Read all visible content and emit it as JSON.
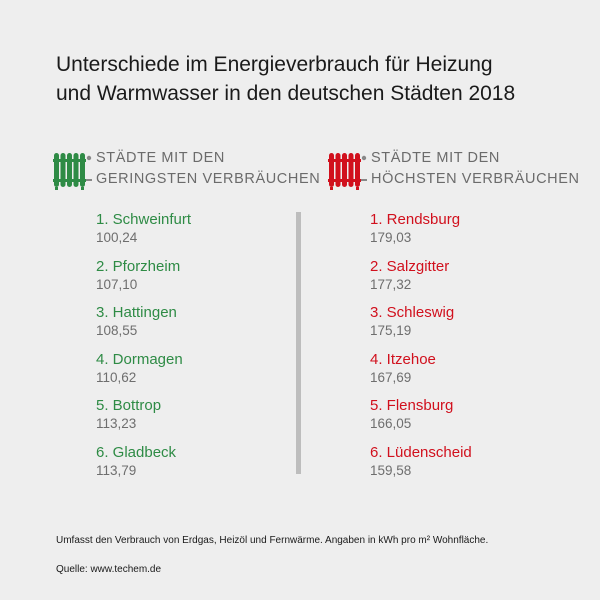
{
  "title": {
    "line1": "Unterschiede im Energieverbrauch für Heizung",
    "line2": "und Warmwasser in den deutschen Städten 2018"
  },
  "low": {
    "heading_line1": "STÄDTE MIT DEN",
    "heading_line2": "GERINGSTEN VERBRÄUCHEN",
    "icon": "radiator-icon",
    "color": "#2e8b45",
    "items": [
      {
        "city": "1. Schweinfurt",
        "value": "100,24"
      },
      {
        "city": "2. Pforzheim",
        "value": "107,10"
      },
      {
        "city": "3. Hattingen",
        "value": "108,55"
      },
      {
        "city": "4. Dormagen",
        "value": "110,62"
      },
      {
        "city": "5. Bottrop",
        "value": "113,23"
      },
      {
        "city": "6. Gladbeck",
        "value": "113,79"
      }
    ]
  },
  "high": {
    "heading_line1": "STÄDTE MIT DEN",
    "heading_line2": "HÖCHSTEN VERBRÄUCHEN",
    "icon": "radiator-icon",
    "color": "#d1101d",
    "items": [
      {
        "city": "1. Rendsburg",
        "value": "179,03"
      },
      {
        "city": "2. Salzgitter",
        "value": "177,32"
      },
      {
        "city": "3. Schleswig",
        "value": "175,19"
      },
      {
        "city": "4. Itzehoe",
        "value": "167,69"
      },
      {
        "city": "5. Flensburg",
        "value": "166,05"
      },
      {
        "city": "6. Lüdenscheid",
        "value": "159,58"
      }
    ]
  },
  "footnote": "Umfasst den Verbrauch von Erdgas, Heizöl und Fernwärme. Angaben in kWh pro m² Wohnfläche.",
  "source": "Quelle: www.techem.de"
}
